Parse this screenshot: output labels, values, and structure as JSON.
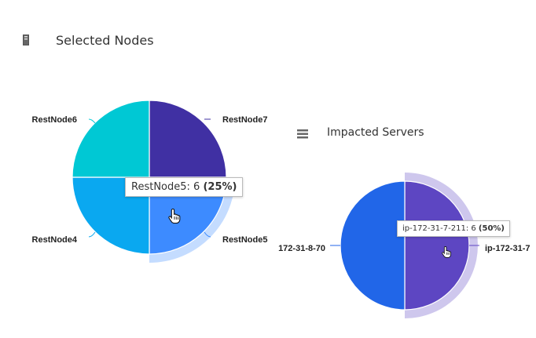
{
  "selected_nodes": {
    "title": "Selected Nodes",
    "icon": "server-icon",
    "tooltip": {
      "label": "RestNode5: 6",
      "percent": "(25%)"
    }
  },
  "impacted_servers": {
    "title": "Impacted Servers",
    "icon": "list-icon",
    "tooltip": {
      "label": "ip-172-31-7-211: 6",
      "percent": "(50%)"
    }
  },
  "chart_data": [
    {
      "type": "pie",
      "title": "Selected Nodes",
      "categories": [
        "RestNode7",
        "RestNode5",
        "RestNode4",
        "RestNode6"
      ],
      "values": [
        6,
        6,
        6,
        6
      ],
      "colors": [
        "#4030a3",
        "#3d8bff",
        "#0aa8f0",
        "#00c8d4"
      ],
      "highlighted": "RestNode5"
    },
    {
      "type": "pie",
      "title": "Impacted Servers",
      "categories": [
        "ip-172-31-7",
        "172-31-8-70"
      ],
      "values": [
        6,
        6
      ],
      "colors": [
        "#5d46c2",
        "#2166e8"
      ],
      "highlighted": "ip-172-31-7"
    }
  ]
}
